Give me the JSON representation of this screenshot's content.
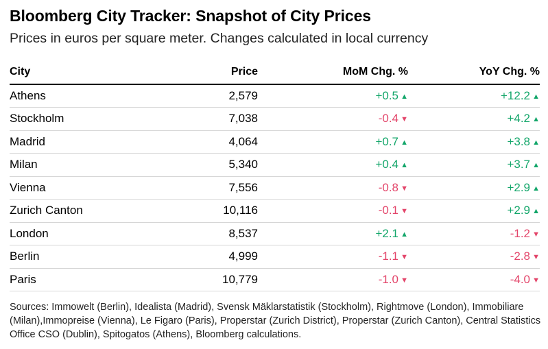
{
  "title": "Bloomberg City Tracker: Snapshot of City Prices",
  "subtitle": "Prices in euros per square meter. Changes calculated in local currency",
  "columns": [
    "City",
    "Price",
    "MoM Chg. %",
    "YoY Chg. %"
  ],
  "colors": {
    "positive": "#13a66a",
    "negative": "#e3456a"
  },
  "chart_data": {
    "type": "table",
    "title": "Bloomberg City Tracker: Snapshot of City Prices",
    "columns": [
      "City",
      "Price",
      "MoM Chg. %",
      "YoY Chg. %"
    ],
    "rows": [
      {
        "city": "Athens",
        "price": "2,579",
        "mom": "+0.5",
        "yoy": "+12.2"
      },
      {
        "city": "Stockholm",
        "price": "7,038",
        "mom": "-0.4",
        "yoy": "+4.2"
      },
      {
        "city": "Madrid",
        "price": "4,064",
        "mom": "+0.7",
        "yoy": "+3.8"
      },
      {
        "city": "Milan",
        "price": "5,340",
        "mom": "+0.4",
        "yoy": "+3.7"
      },
      {
        "city": "Vienna",
        "price": "7,556",
        "mom": "-0.8",
        "yoy": "+2.9"
      },
      {
        "city": "Zurich Canton",
        "price": "10,116",
        "mom": "-0.1",
        "yoy": "+2.9"
      },
      {
        "city": "London",
        "price": "8,537",
        "mom": "+2.1",
        "yoy": "-1.2"
      },
      {
        "city": "Berlin",
        "price": "4,999",
        "mom": "-1.1",
        "yoy": "-2.8"
      },
      {
        "city": "Paris",
        "price": "10,779",
        "mom": "-1.0",
        "yoy": "-4.0"
      }
    ]
  },
  "sources": "Sources: Immowelt (Berlin), Idealista (Madrid), Svensk Mäklarstatistik (Stockholm), Rightmove (London), Immobiliare (Milan),Immopreise (Vienna), Le Figaro (Paris), Properstar (Zurich District), Properstar (Zurich Canton), Central Statistics Office CSO (Dublin), Spitogatos (Athens), Bloomberg calculations."
}
